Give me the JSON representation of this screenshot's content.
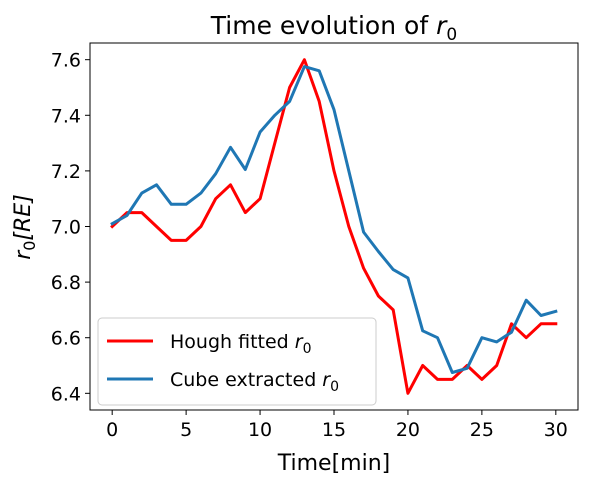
{
  "chart_data": {
    "type": "line",
    "title": "Time evolution of ",
    "title_math": "r",
    "title_sub": "0",
    "xlabel": "Time[min]",
    "ylabel_math": "r",
    "ylabel_sub": "0",
    "ylabel_rest": "[RE]",
    "xlim": [
      -1.5,
      31.5
    ],
    "ylim": [
      6.34,
      7.66
    ],
    "xticks": [
      0,
      5,
      10,
      15,
      20,
      25,
      30
    ],
    "yticks": [
      6.4,
      6.6,
      6.8,
      7.0,
      7.2,
      7.4,
      7.6
    ],
    "ytick_labels": [
      "6.4",
      "6.6",
      "6.8",
      "7.0",
      "7.2",
      "7.4",
      "7.6"
    ],
    "grid": false,
    "legend_position": "lower-left",
    "series": [
      {
        "name": "Hough fitted ",
        "name_math": "r",
        "name_sub": "0",
        "color": "#ff0000",
        "x": [
          0,
          1,
          2,
          3,
          4,
          5,
          6,
          7,
          8,
          9,
          10,
          11,
          12,
          13,
          14,
          15,
          16,
          17,
          18,
          19,
          20,
          21,
          22,
          23,
          24,
          25,
          26,
          27,
          28,
          29,
          30
        ],
        "y": [
          7.0,
          7.05,
          7.05,
          7.0,
          6.95,
          6.95,
          7.0,
          7.1,
          7.15,
          7.05,
          7.1,
          7.3,
          7.5,
          7.6,
          7.45,
          7.2,
          7.0,
          6.85,
          6.75,
          6.7,
          6.4,
          6.5,
          6.45,
          6.45,
          6.5,
          6.45,
          6.5,
          6.65,
          6.6,
          6.65,
          6.65
        ]
      },
      {
        "name": "Cube extracted ",
        "name_math": "r",
        "name_sub": "0",
        "color": "#1f77b4",
        "x": [
          0,
          1,
          2,
          3,
          4,
          5,
          6,
          7,
          8,
          9,
          10,
          11,
          12,
          13,
          14,
          15,
          16,
          17,
          18,
          19,
          20,
          21,
          22,
          23,
          24,
          25,
          26,
          27,
          28,
          29,
          30
        ],
        "y": [
          7.01,
          7.04,
          7.12,
          7.15,
          7.08,
          7.08,
          7.12,
          7.19,
          7.285,
          7.205,
          7.34,
          7.4,
          7.45,
          7.575,
          7.56,
          7.42,
          7.2,
          6.98,
          6.91,
          6.845,
          6.815,
          6.625,
          6.6,
          6.475,
          6.49,
          6.6,
          6.585,
          6.62,
          6.735,
          6.68,
          6.695
        ]
      }
    ]
  }
}
